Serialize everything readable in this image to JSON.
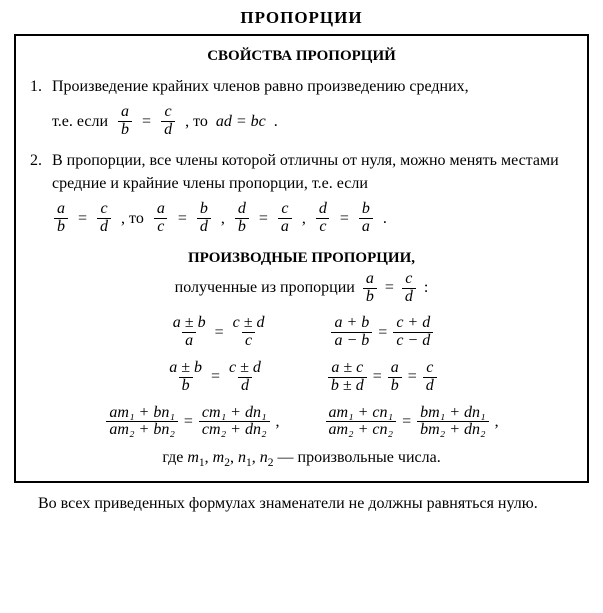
{
  "title": "ПРОПОРЦИИ",
  "section_title": "СВОЙСТВА ПРОПОРЦИЙ",
  "item1": {
    "num": "1.",
    "text": "Произведение крайних членов равно произведению средних,",
    "lead": "т.е. если",
    "mid": ", то",
    "rhs": "ad = bc",
    "tail": "."
  },
  "item2": {
    "num": "2.",
    "text": "В пропорции, все члены которой отличны от нуля, можно менять местами средние и крайние члены пропорции, т.е. если",
    "mid1": ", то",
    "sep": ",",
    "tail": "."
  },
  "derived": {
    "title": "ПРОИЗВОДНЫЕ ПРОПОРЦИИ,",
    "subtitle_pre": "полученные из пропорции",
    "subtitle_post": ":"
  },
  "footer": {
    "pre": "где",
    "m1": "m",
    "s1": "1",
    "m2": "m",
    "s2": "2",
    "n1": "n",
    "s3": "1",
    "n2": "n",
    "s4": "2",
    "post": "— произвольные числа."
  },
  "note": "Во всех приведенных формулах знаменатели не должны равняться нулю.",
  "sym": {
    "a": "a",
    "b": "b",
    "c": "c",
    "d": "d",
    "pm": "±",
    "eq": "=",
    "comma": ",",
    "apb": "a + b",
    "amb": "a − b",
    "cpd": "c + d",
    "cmd": "c − d",
    "apmb": "a ± b",
    "cpmd": "c ± d",
    "apmc": "a ± c",
    "bpmd": "b ± d"
  },
  "long": {
    "num_l1": "am₁ + bn₁",
    "den_l1": "am₂ + bn₂",
    "num_r1": "cm₁ + dn₁",
    "den_r1": "cm₂ + dn₂",
    "num_l2": "am₁ + cn₁",
    "den_l2": "am₂ + cn₂",
    "num_r2": "bm₁ + dn₁",
    "den_r2": "bm₂ + dn₂"
  }
}
